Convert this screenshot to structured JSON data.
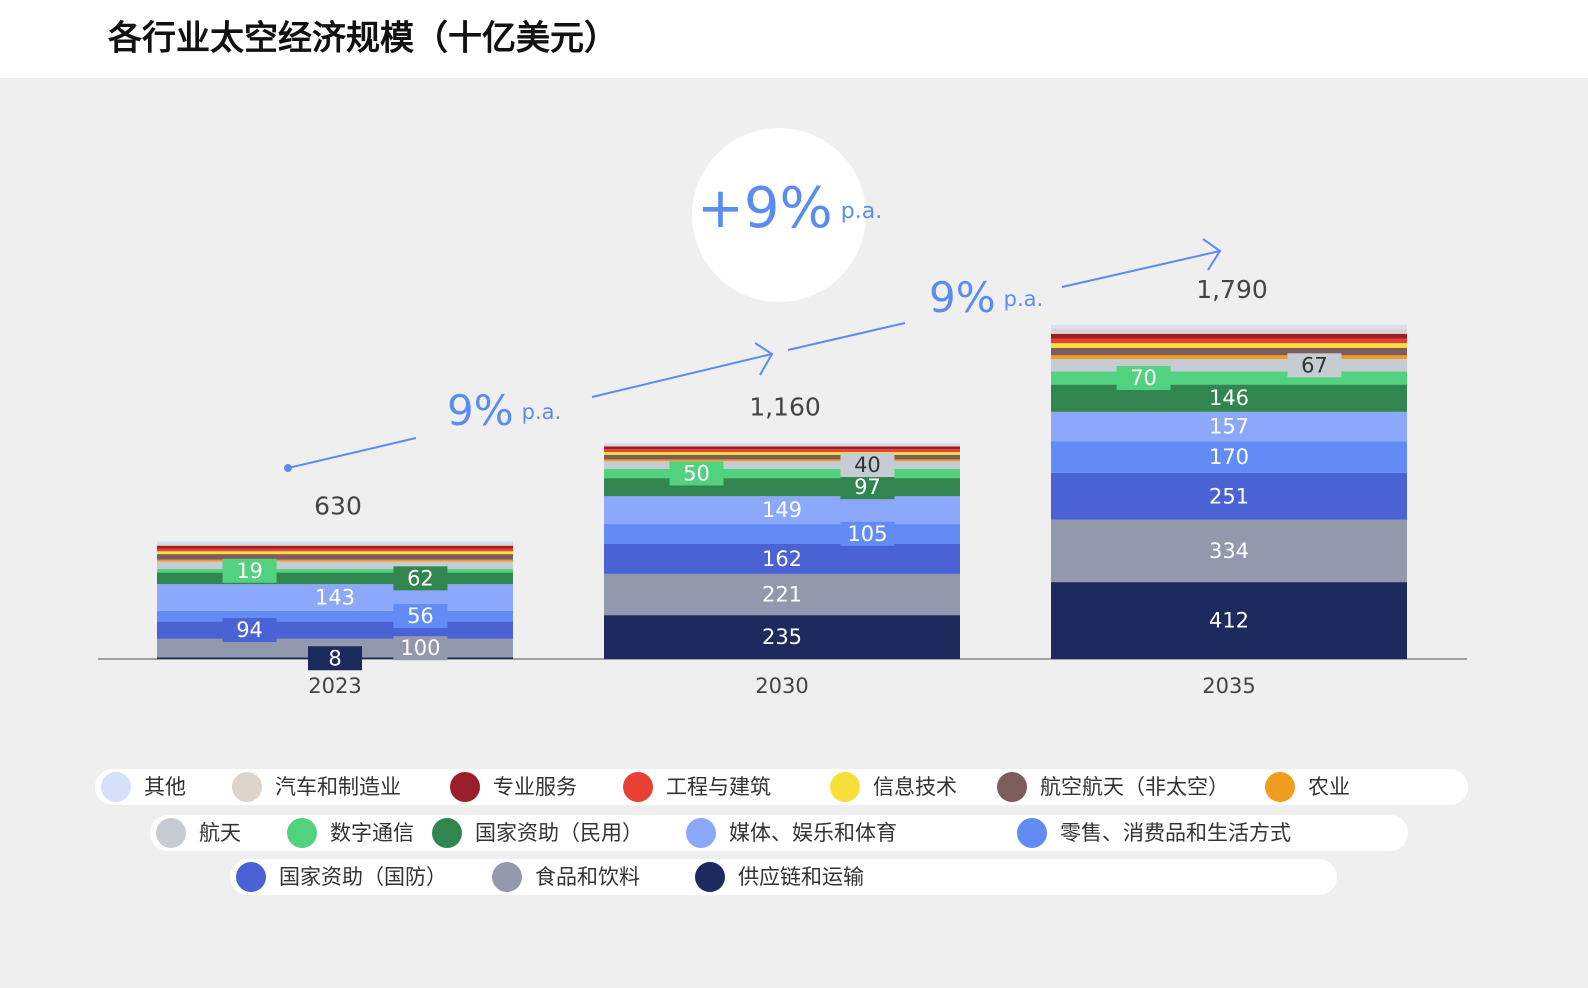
{
  "chart_data": {
    "type": "stacked_bar",
    "title": "各行业太空经济规模（十亿美元）",
    "categories": [
      "2023",
      "2030",
      "2035"
    ],
    "totals": [
      630,
      1160,
      1790
    ],
    "total_labels": [
      "630",
      "1,160",
      "1,790"
    ],
    "ylim": [
      0,
      1800
    ],
    "series": [
      {
        "name": "供应链和运输",
        "color": "#1c2a5e",
        "values": [
          8,
          235,
          412
        ],
        "labels_shown": [
          true,
          true,
          true
        ]
      },
      {
        "name": "食品和饮料",
        "color": "#9399ad",
        "values": [
          100,
          221,
          334
        ],
        "labels_shown": [
          true,
          true,
          true
        ]
      },
      {
        "name": "国家资助（国防）",
        "color": "#4a62d4",
        "values": [
          94,
          162,
          251
        ],
        "labels_shown": [
          true,
          true,
          true
        ]
      },
      {
        "name": "零售、消费品和生活方式",
        "color": "#628bf6",
        "values": [
          56,
          105,
          170
        ],
        "labels_shown": [
          true,
          true,
          true
        ]
      },
      {
        "name": "媒体、娱乐和体育",
        "color": "#8ba8fa",
        "values": [
          143,
          149,
          157
        ],
        "labels_shown": [
          true,
          true,
          true
        ]
      },
      {
        "name": "国家资助（民用）",
        "color": "#31864f",
        "values": [
          62,
          97,
          146
        ],
        "labels_shown": [
          true,
          true,
          true
        ]
      },
      {
        "name": "数字通信",
        "color": "#52d17e",
        "values": [
          19,
          50,
          70
        ],
        "labels_shown": [
          true,
          true,
          true
        ]
      },
      {
        "name": "航天",
        "color": "#c5ccd4",
        "values": [
          40,
          40,
          67
        ],
        "labels_shown": [
          false,
          true,
          true
        ]
      },
      {
        "name": "农业",
        "color": "#f29c1f",
        "values": [
          10,
          10,
          20
        ],
        "labels_shown": [
          false,
          false,
          false
        ]
      },
      {
        "name": "航空航天（非太空）",
        "color": "#7d5c5a",
        "values": [
          30,
          25,
          40
        ],
        "labels_shown": [
          false,
          false,
          false
        ]
      },
      {
        "name": "信息技术",
        "color": "#f7df3a",
        "values": [
          15,
          15,
          25
        ],
        "labels_shown": [
          false,
          false,
          false
        ]
      },
      {
        "name": "工程与建筑",
        "color": "#e84032",
        "values": [
          15,
          15,
          25
        ],
        "labels_shown": [
          false,
          false,
          false
        ]
      },
      {
        "name": "专业服务",
        "color": "#9a1f2a",
        "values": [
          15,
          15,
          25
        ],
        "labels_shown": [
          false,
          false,
          false
        ]
      },
      {
        "name": "汽车和制造业",
        "color": "#ddd5cb",
        "values": [
          13,
          11,
          28
        ],
        "labels_shown": [
          false,
          false,
          false
        ]
      },
      {
        "name": "其他",
        "color": "#d5e0fa",
        "values": [
          10,
          10,
          20
        ],
        "labels_shown": [
          false,
          false,
          false
        ]
      }
    ],
    "annotations": {
      "overall": {
        "text": "+9%",
        "unit": "p.a."
      },
      "growth": [
        {
          "text": "9%",
          "unit": "p.a."
        },
        {
          "text": "9%",
          "unit": "p.a."
        }
      ]
    }
  }
}
